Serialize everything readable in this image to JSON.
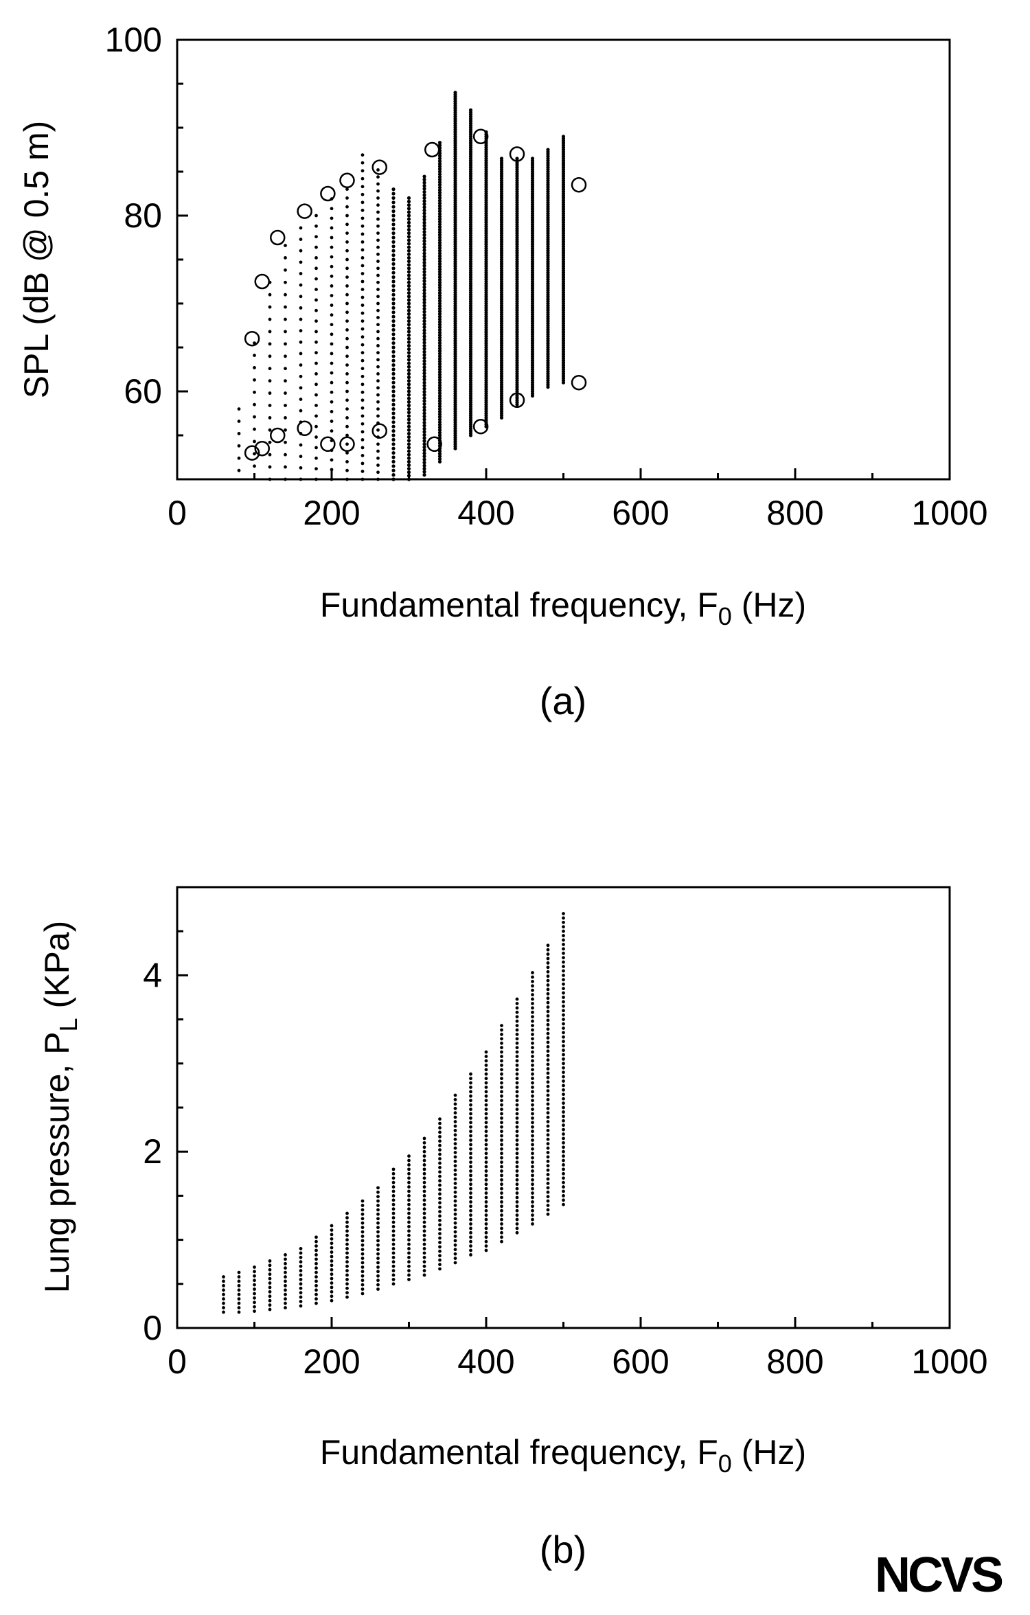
{
  "logo": "NCVS",
  "chart_data": [
    {
      "type": "scatter",
      "panel_label": "(a)",
      "xlabel": "Fundamental frequency, F0 (Hz)",
      "ylabel": "SPL (dB @ 0.5 m)",
      "xlim": [
        0,
        1000
      ],
      "ylim": [
        50,
        100
      ],
      "xticks": [
        0,
        200,
        400,
        600,
        800,
        1000
      ],
      "yticks": [
        60,
        80,
        100
      ],
      "grid": false,
      "legend": "none",
      "series": [
        {
          "marker": "dot",
          "columns": [
            {
              "x": 80,
              "y_min": 51.0,
              "y_max": 58.0,
              "step": 1.4
            },
            {
              "x": 100,
              "y_min": 51.5,
              "y_max": 66.0,
              "step": 1.4
            },
            {
              "x": 120,
              "y_min": 50.0,
              "y_max": 72.5,
              "step": 1.4
            },
            {
              "x": 140,
              "y_min": 50.0,
              "y_max": 77.5,
              "step": 1.4
            },
            {
              "x": 160,
              "y_min": 50.0,
              "y_max": 79.5,
              "step": 1.3
            },
            {
              "x": 180,
              "y_min": 50.0,
              "y_max": 80.5,
              "step": 1.2
            },
            {
              "x": 200,
              "y_min": 50.0,
              "y_max": 82.5,
              "step": 1.1
            },
            {
              "x": 220,
              "y_min": 50.0,
              "y_max": 83.5,
              "step": 1.0
            },
            {
              "x": 240,
              "y_min": 50.0,
              "y_max": 87.5,
              "step": 0.9
            },
            {
              "x": 260,
              "y_min": 50.0,
              "y_max": 85.5,
              "step": 0.8
            },
            {
              "x": 280,
              "y_min": 50.0,
              "y_max": 83.0,
              "step": 0.5
            },
            {
              "x": 300,
              "y_min": 50.0,
              "y_max": 82.0,
              "step": 0.4
            },
            {
              "x": 320,
              "y_min": 50.5,
              "y_max": 84.5,
              "step": 0.35
            },
            {
              "x": 340,
              "y_min": 52.0,
              "y_max": 88.5,
              "step": 0.3
            },
            {
              "x": 360,
              "y_min": 53.5,
              "y_max": 94.0,
              "step": 0.25
            },
            {
              "x": 380,
              "y_min": 55.0,
              "y_max": 92.0,
              "step": 0.25
            },
            {
              "x": 400,
              "y_min": 56.0,
              "y_max": 89.5,
              "step": 0.25
            },
            {
              "x": 420,
              "y_min": 57.0,
              "y_max": 86.5,
              "step": 0.25
            },
            {
              "x": 440,
              "y_min": 58.5,
              "y_max": 86.5,
              "step": 0.25
            },
            {
              "x": 460,
              "y_min": 59.5,
              "y_max": 86.5,
              "step": 0.25
            },
            {
              "x": 480,
              "y_min": 60.5,
              "y_max": 87.5,
              "step": 0.25
            },
            {
              "x": 500,
              "y_min": 61.0,
              "y_max": 89.0,
              "step": 0.25
            }
          ]
        },
        {
          "marker": "open-circle",
          "x": [
            97,
            110,
            130,
            165,
            195,
            220,
            262,
            330,
            393,
            440,
            520,
            97,
            110,
            130,
            165,
            195,
            220,
            262,
            333,
            393,
            440,
            520
          ],
          "y": [
            66.0,
            72.5,
            77.5,
            80.5,
            82.5,
            84.0,
            85.5,
            87.5,
            89.0,
            87.0,
            83.5,
            53.0,
            53.5,
            55.0,
            55.8,
            54.0,
            54.0,
            55.5,
            54.0,
            56.0,
            59.0,
            61.0
          ]
        }
      ]
    },
    {
      "type": "scatter",
      "panel_label": "(b)",
      "xlabel": "Fundamental frequency, F0 (Hz)",
      "ylabel": "Lung pressure, PL (KPa)",
      "xlim": [
        0,
        1000
      ],
      "ylim": [
        0,
        5
      ],
      "xticks": [
        0,
        200,
        400,
        600,
        800,
        1000
      ],
      "yticks": [
        0,
        2,
        4
      ],
      "grid": false,
      "legend": "none",
      "series": [
        {
          "marker": "dot",
          "columns": [
            {
              "x": 60,
              "y_min": 0.18,
              "y_max": 0.58
            },
            {
              "x": 80,
              "y_min": 0.18,
              "y_max": 0.64
            },
            {
              "x": 100,
              "y_min": 0.19,
              "y_max": 0.7
            },
            {
              "x": 120,
              "y_min": 0.21,
              "y_max": 0.77
            },
            {
              "x": 140,
              "y_min": 0.23,
              "y_max": 0.85
            },
            {
              "x": 160,
              "y_min": 0.25,
              "y_max": 0.94
            },
            {
              "x": 180,
              "y_min": 0.28,
              "y_max": 1.05
            },
            {
              "x": 200,
              "y_min": 0.31,
              "y_max": 1.18
            },
            {
              "x": 220,
              "y_min": 0.35,
              "y_max": 1.32
            },
            {
              "x": 240,
              "y_min": 0.39,
              "y_max": 1.47
            },
            {
              "x": 260,
              "y_min": 0.44,
              "y_max": 1.63
            },
            {
              "x": 280,
              "y_min": 0.5,
              "y_max": 1.82
            },
            {
              "x": 300,
              "y_min": 0.55,
              "y_max": 1.97
            },
            {
              "x": 320,
              "y_min": 0.6,
              "y_max": 2.18
            },
            {
              "x": 340,
              "y_min": 0.67,
              "y_max": 2.4
            },
            {
              "x": 360,
              "y_min": 0.74,
              "y_max": 2.65
            },
            {
              "x": 380,
              "y_min": 0.83,
              "y_max": 2.9
            },
            {
              "x": 400,
              "y_min": 0.88,
              "y_max": 3.17
            },
            {
              "x": 420,
              "y_min": 0.98,
              "y_max": 3.45
            },
            {
              "x": 440,
              "y_min": 1.08,
              "y_max": 3.75
            },
            {
              "x": 460,
              "y_min": 1.18,
              "y_max": 4.05
            },
            {
              "x": 480,
              "y_min": 1.29,
              "y_max": 4.35
            },
            {
              "x": 500,
              "y_min": 1.4,
              "y_max": 4.7
            }
          ],
          "step": 0.05
        }
      ]
    }
  ]
}
